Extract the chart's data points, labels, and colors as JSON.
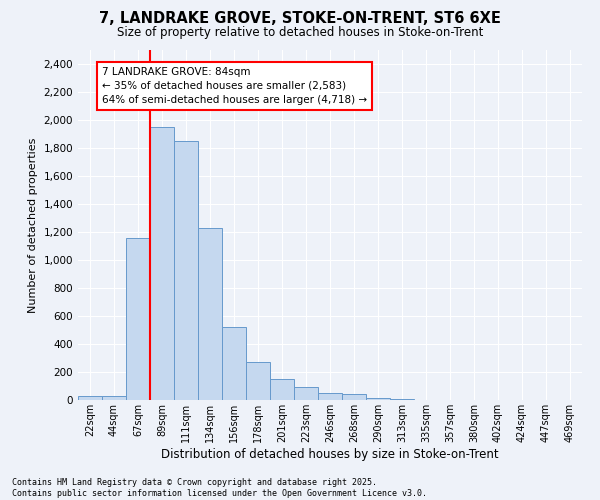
{
  "title1": "7, LANDRAKE GROVE, STOKE-ON-TRENT, ST6 6XE",
  "title2": "Size of property relative to detached houses in Stoke-on-Trent",
  "xlabel": "Distribution of detached houses by size in Stoke-on-Trent",
  "ylabel": "Number of detached properties",
  "categories": [
    "22sqm",
    "44sqm",
    "67sqm",
    "89sqm",
    "111sqm",
    "134sqm",
    "156sqm",
    "178sqm",
    "201sqm",
    "223sqm",
    "246sqm",
    "268sqm",
    "290sqm",
    "313sqm",
    "335sqm",
    "357sqm",
    "380sqm",
    "402sqm",
    "424sqm",
    "447sqm",
    "469sqm"
  ],
  "values": [
    30,
    30,
    1160,
    1950,
    1850,
    1230,
    520,
    275,
    150,
    90,
    50,
    45,
    15,
    8,
    3,
    2,
    1,
    0,
    0,
    0,
    0
  ],
  "bar_color": "#c5d8ef",
  "bar_edge_color": "#6699cc",
  "vline_color": "red",
  "vline_pos": 2.5,
  "annotation_title": "7 LANDRAKE GROVE: 84sqm",
  "annotation_line2": "← 35% of detached houses are smaller (2,583)",
  "annotation_line3": "64% of semi-detached houses are larger (4,718) →",
  "annotation_box_color": "white",
  "annotation_box_edge": "red",
  "ylim": [
    0,
    2500
  ],
  "yticks": [
    0,
    200,
    400,
    600,
    800,
    1000,
    1200,
    1400,
    1600,
    1800,
    2000,
    2200,
    2400
  ],
  "footer1": "Contains HM Land Registry data © Crown copyright and database right 2025.",
  "footer2": "Contains public sector information licensed under the Open Government Licence v3.0.",
  "bg_color": "#eef2f9"
}
